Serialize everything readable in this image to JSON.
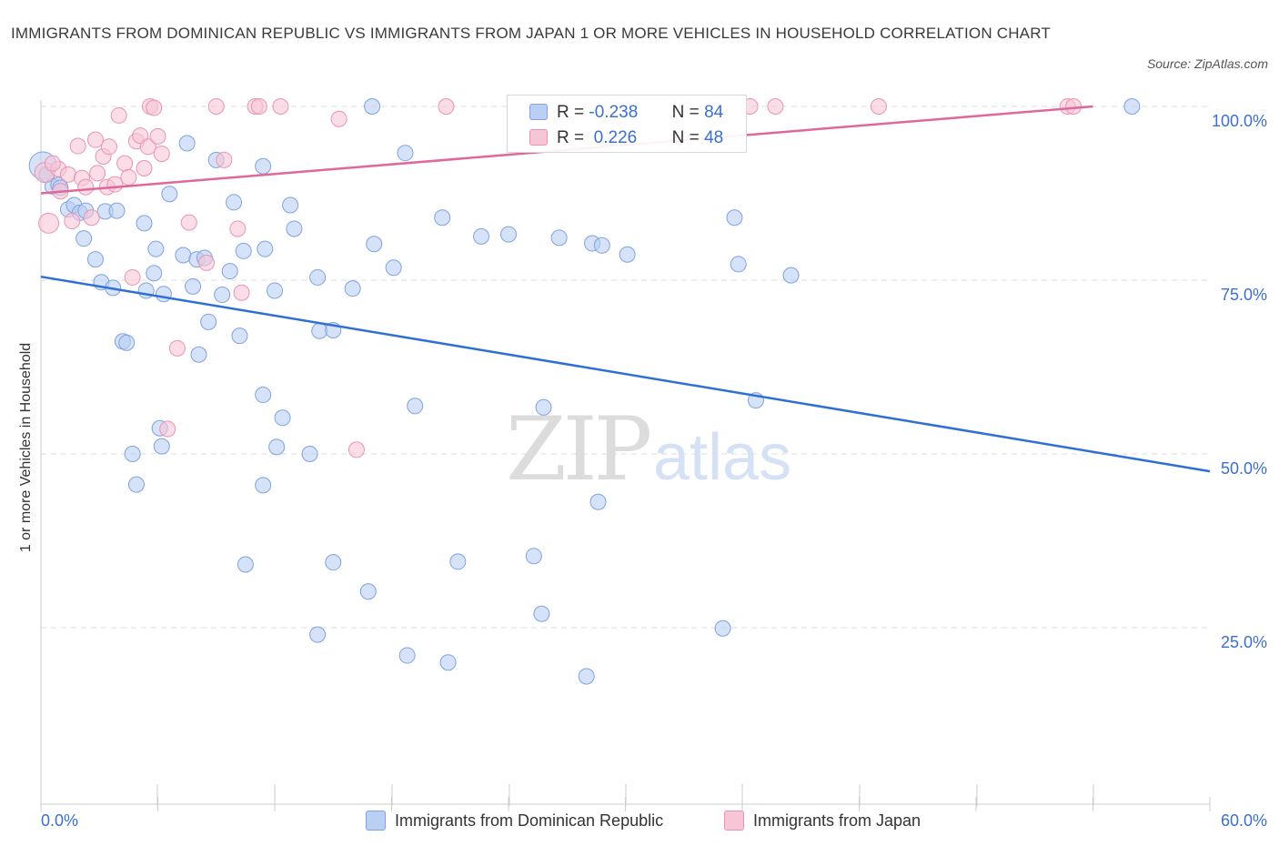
{
  "title": "IMMIGRANTS FROM DOMINICAN REPUBLIC VS IMMIGRANTS FROM JAPAN 1 OR MORE VEHICLES IN HOUSEHOLD CORRELATION CHART",
  "source": "Source: ZipAtlas.com",
  "watermark": {
    "zip": "ZIP",
    "atlas": "atlas"
  },
  "legend": {
    "series1": {
      "r_label": "R =",
      "r_value": "-0.238",
      "n_label": "N =",
      "n_value": "84"
    },
    "series2": {
      "r_label": "R =",
      "r_value": " 0.226",
      "n_label": "N =",
      "n_value": "48"
    }
  },
  "colors": {
    "blue_fill": "#b9cff4",
    "blue_stroke": "#7fa3e0",
    "blue_line": "#2d6fd6",
    "pink_fill": "#f7c6d6",
    "pink_stroke": "#ea93b1",
    "pink_line": "#e0679a",
    "axis_text": "#3b6fd4",
    "grid": "#dddddd"
  },
  "chart_data": {
    "type": "scatter",
    "xlabel": "",
    "ylabel": "1 or more Vehicles in Household",
    "xlim": [
      0,
      60
    ],
    "ylim": [
      0,
      104
    ],
    "x_tick_labels": [
      {
        "value": 0,
        "label": "0.0%"
      },
      {
        "value": 60,
        "label": "60.0%"
      }
    ],
    "y_tick_labels": [
      {
        "value": 25,
        "label": "25.0%"
      },
      {
        "value": 50,
        "label": "50.0%"
      },
      {
        "value": 75,
        "label": "75.0%"
      },
      {
        "value": 100,
        "label": "100.0%"
      }
    ],
    "series": [
      {
        "name": "Immigrants from Dominican Republic",
        "color": "blue",
        "trendline": {
          "x": [
            0,
            60
          ],
          "y": [
            75.5,
            47.5
          ]
        },
        "points": [
          [
            0.1,
            91.5,
            3
          ],
          [
            0.3,
            90.2,
            1
          ],
          [
            0.6,
            88.5,
            1
          ],
          [
            0.9,
            88.7,
            1
          ],
          [
            1.0,
            88.3,
            1
          ],
          [
            1.4,
            85.2,
            1
          ],
          [
            1.7,
            85.8,
            1
          ],
          [
            2.0,
            84.7,
            1
          ],
          [
            2.3,
            85.0,
            1
          ],
          [
            3.3,
            84.9,
            1
          ],
          [
            3.9,
            85.0,
            1
          ],
          [
            2.2,
            81.0,
            1
          ],
          [
            2.8,
            78.0,
            1
          ],
          [
            3.1,
            74.7,
            1
          ],
          [
            3.7,
            73.9,
            1
          ],
          [
            5.3,
            83.2,
            1
          ],
          [
            5.9,
            79.5,
            1
          ],
          [
            5.8,
            76.0,
            1
          ],
          [
            5.4,
            73.5,
            1
          ],
          [
            6.3,
            73.0,
            1
          ],
          [
            6.6,
            87.4,
            1
          ],
          [
            7.5,
            94.7,
            1
          ],
          [
            7.3,
            78.6,
            1
          ],
          [
            7.8,
            74.1,
            1
          ],
          [
            8.0,
            78.0,
            1
          ],
          [
            8.4,
            78.2,
            1
          ],
          [
            9.0,
            92.3,
            1
          ],
          [
            9.3,
            72.9,
            1
          ],
          [
            9.7,
            76.3,
            1
          ],
          [
            9.9,
            86.2,
            1
          ],
          [
            10.4,
            79.2,
            1
          ],
          [
            11.5,
            79.5,
            1
          ],
          [
            11.4,
            91.4,
            1
          ],
          [
            12.0,
            73.5,
            1
          ],
          [
            12.8,
            85.8,
            1
          ],
          [
            13.0,
            82.4,
            1
          ],
          [
            14.2,
            75.4,
            1
          ],
          [
            14.3,
            67.7,
            1
          ],
          [
            15.0,
            67.8,
            1
          ],
          [
            16.0,
            73.8,
            1
          ],
          [
            17.1,
            80.2,
            1
          ],
          [
            18.1,
            76.8,
            1
          ],
          [
            17.0,
            100.0,
            1
          ],
          [
            18.7,
            93.3,
            1
          ],
          [
            20.6,
            84.0,
            1
          ],
          [
            22.6,
            81.3,
            1
          ],
          [
            24.0,
            81.6,
            1
          ],
          [
            26.6,
            81.1,
            1
          ],
          [
            28.3,
            80.3,
            1
          ],
          [
            28.8,
            80.0,
            1
          ],
          [
            30.1,
            78.7,
            1
          ],
          [
            35.6,
            84.0,
            1
          ],
          [
            35.8,
            77.3,
            1
          ],
          [
            38.5,
            75.7,
            1
          ],
          [
            56.0,
            100.0,
            1
          ],
          [
            4.2,
            66.2,
            1
          ],
          [
            4.4,
            66.0,
            1
          ],
          [
            8.6,
            69.0,
            1
          ],
          [
            10.2,
            67.0,
            1
          ],
          [
            8.1,
            64.3,
            1
          ],
          [
            11.4,
            58.5,
            1
          ],
          [
            12.4,
            55.2,
            1
          ],
          [
            12.1,
            51.0,
            1
          ],
          [
            13.8,
            50.0,
            1
          ],
          [
            19.2,
            56.9,
            1
          ],
          [
            25.8,
            56.7,
            1
          ],
          [
            36.7,
            57.7,
            1
          ],
          [
            6.1,
            53.7,
            1
          ],
          [
            6.2,
            51.1,
            1
          ],
          [
            4.7,
            50.0,
            1
          ],
          [
            4.9,
            45.6,
            1
          ],
          [
            11.4,
            45.5,
            1
          ],
          [
            28.6,
            43.1,
            1
          ],
          [
            10.5,
            34.1,
            1
          ],
          [
            15.0,
            34.4,
            1
          ],
          [
            16.8,
            30.2,
            1
          ],
          [
            21.4,
            34.5,
            1
          ],
          [
            25.3,
            35.3,
            1
          ],
          [
            25.7,
            27.0,
            1
          ],
          [
            35.0,
            24.9,
            1
          ],
          [
            14.2,
            24.0,
            1
          ],
          [
            18.8,
            21.0,
            1
          ],
          [
            20.9,
            20.0,
            1
          ],
          [
            28.0,
            18.0,
            1
          ]
        ]
      },
      {
        "name": "Immigrants from Japan",
        "color": "pink",
        "trendline": {
          "x": [
            0,
            54
          ],
          "y": [
            87.5,
            100.0
          ]
        },
        "points": [
          [
            0.2,
            90.5,
            2
          ],
          [
            0.4,
            83.2,
            2
          ],
          [
            0.9,
            91.0,
            1
          ],
          [
            1.0,
            87.8,
            1
          ],
          [
            1.4,
            90.2,
            1
          ],
          [
            1.6,
            83.5,
            1
          ],
          [
            1.9,
            94.3,
            1
          ],
          [
            2.1,
            89.7,
            1
          ],
          [
            2.3,
            88.4,
            1
          ],
          [
            2.6,
            84.0,
            1
          ],
          [
            2.8,
            95.2,
            1
          ],
          [
            2.9,
            90.4,
            1
          ],
          [
            3.2,
            92.8,
            1
          ],
          [
            3.4,
            88.4,
            1
          ],
          [
            3.5,
            94.2,
            1
          ],
          [
            3.8,
            88.8,
            1
          ],
          [
            4.0,
            98.7,
            1
          ],
          [
            4.3,
            91.8,
            1
          ],
          [
            4.5,
            89.8,
            1
          ],
          [
            4.7,
            75.4,
            1
          ],
          [
            4.9,
            95.0,
            1
          ],
          [
            5.1,
            95.8,
            1
          ],
          [
            5.3,
            91.1,
            1
          ],
          [
            5.5,
            94.2,
            1
          ],
          [
            5.6,
            100.0,
            1
          ],
          [
            5.8,
            99.8,
            1
          ],
          [
            6.0,
            95.7,
            1
          ],
          [
            6.2,
            93.2,
            1
          ],
          [
            6.5,
            53.6,
            1
          ],
          [
            7.0,
            65.2,
            1
          ],
          [
            7.6,
            83.3,
            1
          ],
          [
            8.5,
            77.5,
            1
          ],
          [
            9.0,
            100.0,
            1
          ],
          [
            9.4,
            92.3,
            1
          ],
          [
            10.1,
            82.4,
            1
          ],
          [
            10.3,
            73.2,
            1
          ],
          [
            11.0,
            100.0,
            1
          ],
          [
            11.2,
            100.0,
            1
          ],
          [
            12.3,
            100.0,
            1
          ],
          [
            15.3,
            98.2,
            1
          ],
          [
            16.2,
            50.6,
            1
          ],
          [
            20.8,
            100.0,
            1
          ],
          [
            36.4,
            100.0,
            1
          ],
          [
            37.7,
            100.0,
            1
          ],
          [
            43.0,
            100.0,
            1
          ],
          [
            52.7,
            100.0,
            1
          ],
          [
            53.0,
            100.0,
            1
          ],
          [
            0.6,
            91.8,
            1
          ]
        ]
      }
    ]
  }
}
